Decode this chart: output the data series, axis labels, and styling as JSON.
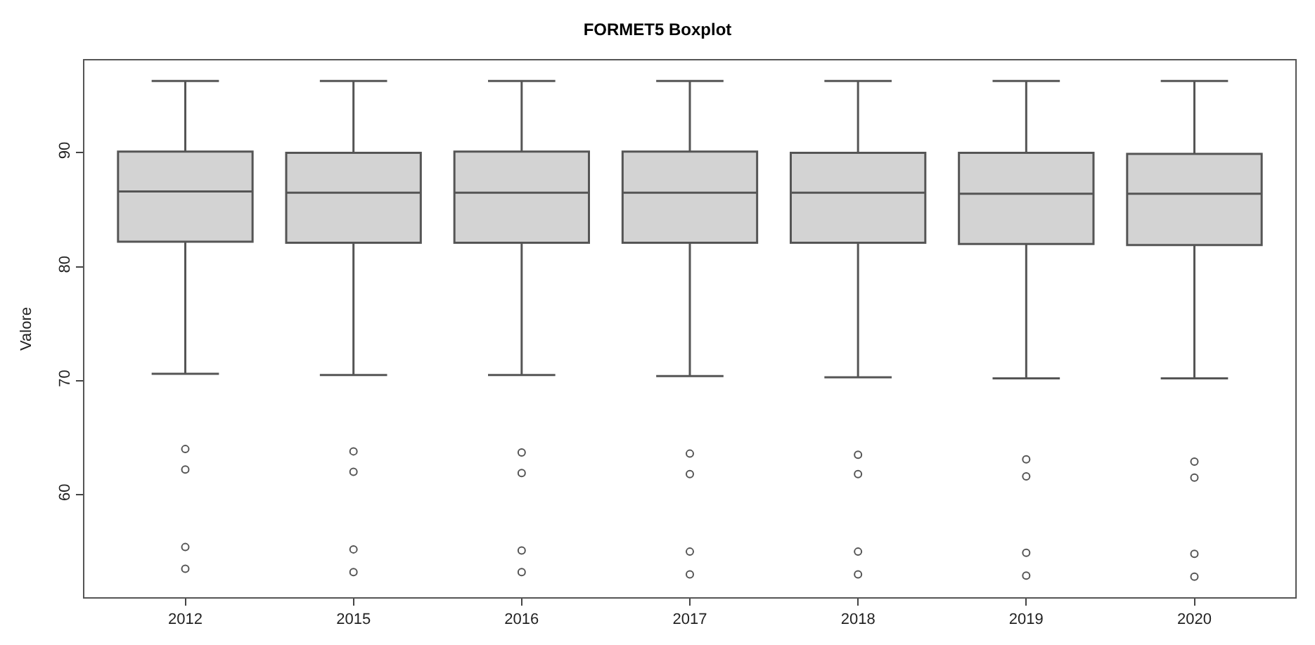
{
  "chart_data": {
    "type": "box",
    "title": "FORMET5 Boxplot",
    "ylabel": "Valore",
    "categories": [
      "2012",
      "2015",
      "2016",
      "2017",
      "2018",
      "2019",
      "2020"
    ],
    "boxes": [
      {
        "low": 70.6,
        "q1": 82.2,
        "median": 86.6,
        "q3": 90.1,
        "high": 96.3,
        "outliers": [
          64.0,
          62.2,
          55.4,
          53.5
        ]
      },
      {
        "low": 70.5,
        "q1": 82.1,
        "median": 86.5,
        "q3": 90.0,
        "high": 96.3,
        "outliers": [
          63.8,
          62.0,
          55.2,
          53.2
        ]
      },
      {
        "low": 70.5,
        "q1": 82.1,
        "median": 86.5,
        "q3": 90.1,
        "high": 96.3,
        "outliers": [
          63.7,
          61.9,
          55.1,
          53.2
        ]
      },
      {
        "low": 70.4,
        "q1": 82.1,
        "median": 86.5,
        "q3": 90.1,
        "high": 96.3,
        "outliers": [
          63.6,
          61.8,
          55.0,
          53.0
        ]
      },
      {
        "low": 70.3,
        "q1": 82.1,
        "median": 86.5,
        "q3": 90.0,
        "high": 96.3,
        "outliers": [
          63.5,
          61.8,
          55.0,
          53.0
        ]
      },
      {
        "low": 70.2,
        "q1": 82.0,
        "median": 86.4,
        "q3": 90.0,
        "high": 96.3,
        "outliers": [
          63.1,
          61.6,
          54.9,
          52.9
        ]
      },
      {
        "low": 70.2,
        "q1": 81.9,
        "median": 86.4,
        "q3": 89.9,
        "high": 96.3,
        "outliers": [
          62.9,
          61.5,
          54.8,
          52.8
        ]
      }
    ],
    "color": "#d3d3d3",
    "ylim": [
      51.0,
      98.1
    ],
    "yticks": [
      60,
      70,
      80,
      90
    ],
    "marker": "circle"
  }
}
